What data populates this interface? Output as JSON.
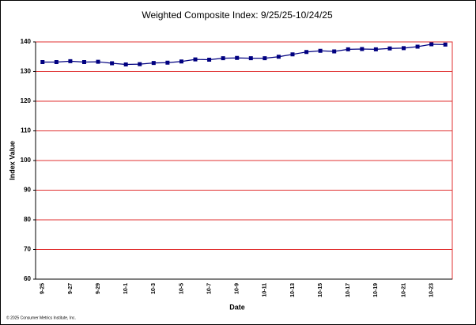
{
  "chart_data": {
    "type": "line",
    "title": "Weighted Composite Index: 9/25/25-10/24/25",
    "x_label": "Date",
    "y_label": "Index Value",
    "footnote": "© 2025 Consumer Metrics Institute, Inc.",
    "categories": [
      "9-25",
      null,
      "9-27",
      null,
      "9-29",
      null,
      "10-1",
      null,
      "10-3",
      null,
      "10-5",
      null,
      "10-7",
      null,
      "10-9",
      null,
      "10-11",
      null,
      "10-13",
      null,
      "10-15",
      null,
      "10-17",
      null,
      "10-19",
      null,
      "10-21",
      null,
      "10-23",
      null
    ],
    "values": [
      133.2,
      133.2,
      133.5,
      133.2,
      133.3,
      132.8,
      132.4,
      132.5,
      132.9,
      133.0,
      133.4,
      134.1,
      134.0,
      134.5,
      134.6,
      134.5,
      134.5,
      135.0,
      135.8,
      136.6,
      137.0,
      136.8,
      137.5,
      137.6,
      137.5,
      137.8,
      137.9,
      138.4,
      139.2,
      139.1
    ],
    "color": "#000080",
    "grid_color": "#e03030",
    "ylim": [
      60,
      140
    ],
    "yticks": [
      60,
      70,
      80,
      90,
      100,
      110,
      120,
      130,
      140
    ],
    "grid": true
  }
}
